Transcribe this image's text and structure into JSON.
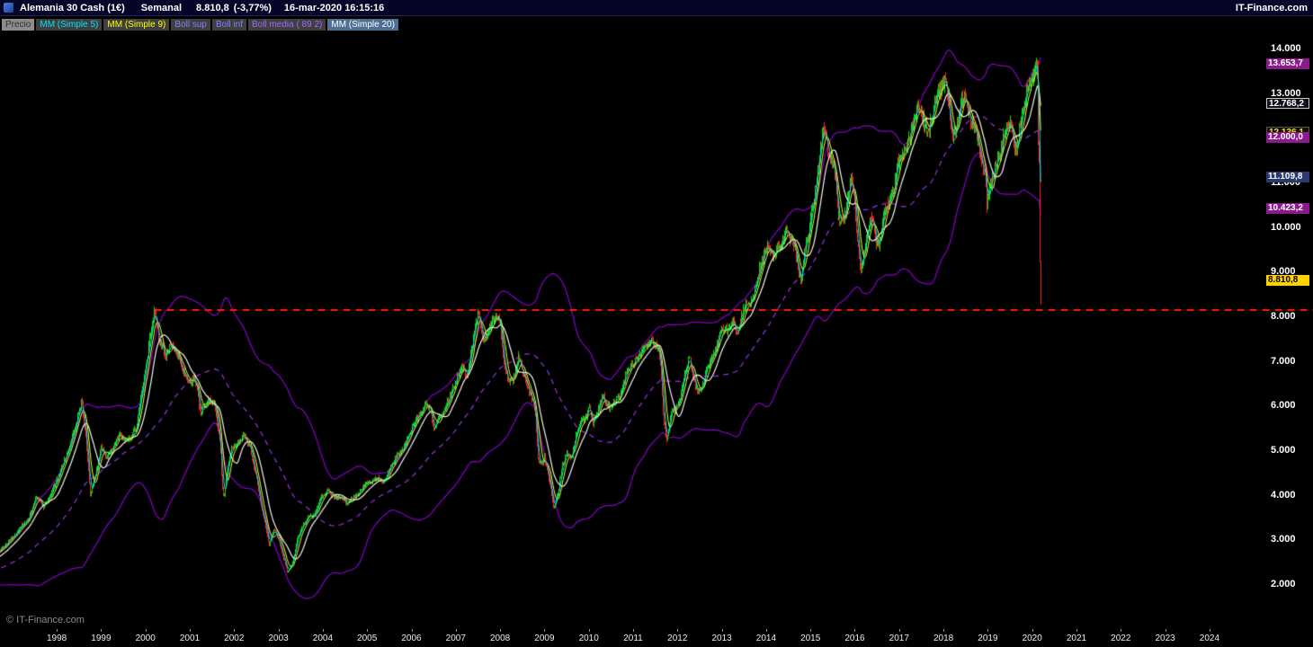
{
  "header": {
    "symbol": "Alemania 30 Cash (1€)",
    "timeframe": "Semanal",
    "last_price": "8.810,8",
    "change": "(-3,77%)",
    "timestamp": "16-mar-2020 16:15:16",
    "brand": "IT-Finance.com"
  },
  "legend": {
    "items": [
      {
        "id": "precio",
        "label": "Precio",
        "color": "#2e2e2e",
        "bg": "#8c8c8c"
      },
      {
        "id": "mm5",
        "label": "MM (Simple 5)",
        "color": "#00e5ff",
        "bg": "#3f3f3f"
      },
      {
        "id": "mm9",
        "label": "MM (Simple 9)",
        "color": "#ffff00",
        "bg": "#3f3f3f"
      },
      {
        "id": "boll-sup",
        "label": "Boll sup",
        "color": "#8080ff",
        "bg": "#3f3f3f"
      },
      {
        "id": "boll-inf",
        "label": "Boll inf",
        "color": "#8080ff",
        "bg": "#3f3f3f"
      },
      {
        "id": "boll-media",
        "label": "Boll media ( 89 2)",
        "color": "#9a6aff",
        "bg": "#3f3f3f"
      },
      {
        "id": "mm20",
        "label": "MM (Simple 20)",
        "color": "#ffffff",
        "bg": "#4e6f94"
      }
    ]
  },
  "watermark": "© IT-Finance.com",
  "price_tags": [
    {
      "text": "13.653,7",
      "value": 13653.7,
      "bg": "#8b1a8b",
      "color": "#ffffff"
    },
    {
      "text": "12.768,2",
      "value": 12768.2,
      "bg": "#10101a",
      "color": "#ffffff",
      "border": "#c8c8c8"
    },
    {
      "text": "12.136,1",
      "value": 12136.1,
      "bg": "#101010",
      "color": "#ffe000",
      "border": "#555555"
    },
    {
      "text": "12.000,0",
      "value": 12000.0,
      "bg": "#8b1a8b",
      "color": "#ffffff"
    },
    {
      "text": "11.109,8",
      "value": 11109.8,
      "bg": "#2b3a6e",
      "color": "#ffffff"
    },
    {
      "text": "10.423,2",
      "value": 10423.2,
      "bg": "#8b1a8b",
      "color": "#ffffff"
    },
    {
      "text": "8.810,8",
      "value": 8810.8,
      "bg": "#ffd400",
      "color": "#000000"
    }
  ],
  "chart_data": {
    "type": "candlestick",
    "title": "Alemania 30 Cash (1€) — Semanal",
    "x_axis": {
      "range": [
        1996.72,
        2025.28
      ],
      "ticks": [
        "1998",
        "1999",
        "2000",
        "2001",
        "2002",
        "2003",
        "2004",
        "2005",
        "2006",
        "2007",
        "2008",
        "2009",
        "2010",
        "2011",
        "2012",
        "2013",
        "2014",
        "2015",
        "2016",
        "2017",
        "2018",
        "2019",
        "2020",
        "2021",
        "2022",
        "2023",
        "2024"
      ]
    },
    "y_axis": {
      "range": [
        993,
        14361
      ],
      "ticks": [
        {
          "v": 14000,
          "label": "14.000"
        },
        {
          "v": 13000,
          "label": "13.000"
        },
        {
          "v": 12000,
          "label": "12.000"
        },
        {
          "v": 11000,
          "label": "11.000"
        },
        {
          "v": 10000,
          "label": "10.000"
        },
        {
          "v": 9000,
          "label": "9.000"
        },
        {
          "v": 8000,
          "label": "8.000"
        },
        {
          "v": 7000,
          "label": "7.000"
        },
        {
          "v": 6000,
          "label": "6.000"
        },
        {
          "v": 5000,
          "label": "5.000"
        },
        {
          "v": 4000,
          "label": "4.000"
        },
        {
          "v": 3000,
          "label": "3.000"
        },
        {
          "v": 2000,
          "label": "2.000"
        }
      ]
    },
    "support_line": {
      "value": 8150,
      "color": "#ff2000",
      "style": "dashed",
      "dash": [
        8,
        6
      ],
      "x_start": 2000.2
    },
    "candles": {
      "up_color": "#00e000",
      "down_color": "#ff2222",
      "interval": "weekly"
    },
    "indicators": [
      {
        "name": "MM (Simple 5)",
        "type": "sma",
        "period": 5,
        "color": "#00e5ff",
        "width": 1
      },
      {
        "name": "MM (Simple 9)",
        "type": "sma",
        "period": 9,
        "color": "#ffff00",
        "width": 1
      },
      {
        "name": "MM (Simple 20)",
        "type": "sma",
        "period": 20,
        "color": "#f2f2f2",
        "width": 1.2
      },
      {
        "name": "Bollinger (89,2)",
        "type": "bollinger",
        "period": 89,
        "mult": 2,
        "band_color": "#8800cc",
        "mid_color": "#9933e6",
        "mid_dash": [
          6,
          5
        ],
        "width": 1.2
      }
    ],
    "final_weeks": {
      "closes": [
        13744,
        13579,
        11890,
        11542,
        9232,
        8810.8
      ],
      "last_low": 8255,
      "peak_high": 13795
    },
    "close_keyframes": [
      [
        1995.0,
        2080
      ],
      [
        1995.3,
        2150
      ],
      [
        1995.6,
        2230
      ],
      [
        1995.9,
        2300
      ],
      [
        1996.2,
        2480
      ],
      [
        1996.5,
        2570
      ],
      [
        1996.85,
        2880
      ],
      [
        1997.1,
        3180
      ],
      [
        1997.35,
        3460
      ],
      [
        1997.55,
        4000
      ],
      [
        1997.7,
        3720
      ],
      [
        1997.85,
        3980
      ],
      [
        1998.0,
        4320
      ],
      [
        1998.15,
        4760
      ],
      [
        1998.3,
        5120
      ],
      [
        1998.45,
        5700
      ],
      [
        1998.55,
        6080
      ],
      [
        1998.65,
        5380
      ],
      [
        1998.75,
        4020
      ],
      [
        1998.85,
        4420
      ],
      [
        1999.0,
        5060
      ],
      [
        1999.1,
        4860
      ],
      [
        1999.25,
        5010
      ],
      [
        1999.4,
        5350
      ],
      [
        1999.55,
        5210
      ],
      [
        1999.7,
        5350
      ],
      [
        1999.8,
        5560
      ],
      [
        1999.95,
        6580
      ],
      [
        2000.05,
        7210
      ],
      [
        2000.2,
        8100
      ],
      [
        2000.3,
        7480
      ],
      [
        2000.45,
        7080
      ],
      [
        2000.55,
        7340
      ],
      [
        2000.7,
        7190
      ],
      [
        2000.85,
        6790
      ],
      [
        2001.0,
        6480
      ],
      [
        2001.1,
        6640
      ],
      [
        2001.25,
        5830
      ],
      [
        2001.4,
        6130
      ],
      [
        2001.55,
        6040
      ],
      [
        2001.68,
        5190
      ],
      [
        2001.72,
        4280
      ],
      [
        2001.76,
        3920
      ],
      [
        2001.85,
        4680
      ],
      [
        2001.95,
        5040
      ],
      [
        2002.05,
        5140
      ],
      [
        2002.2,
        5340
      ],
      [
        2002.35,
        5090
      ],
      [
        2002.5,
        4380
      ],
      [
        2002.6,
        3700
      ],
      [
        2002.7,
        3340
      ],
      [
        2002.78,
        2860
      ],
      [
        2002.88,
        3240
      ],
      [
        2003.0,
        3000
      ],
      [
        2003.1,
        2640
      ],
      [
        2003.2,
        2260
      ],
      [
        2003.3,
        2460
      ],
      [
        2003.4,
        2940
      ],
      [
        2003.5,
        3240
      ],
      [
        2003.6,
        3400
      ],
      [
        2003.7,
        3560
      ],
      [
        2003.8,
        3500
      ],
      [
        2003.95,
        3950
      ],
      [
        2004.1,
        4100
      ],
      [
        2004.25,
        3940
      ],
      [
        2004.4,
        3950
      ],
      [
        2004.55,
        3790
      ],
      [
        2004.65,
        3900
      ],
      [
        2004.8,
        4050
      ],
      [
        2004.95,
        4250
      ],
      [
        2005.1,
        4300
      ],
      [
        2005.25,
        4390
      ],
      [
        2005.35,
        4250
      ],
      [
        2005.5,
        4590
      ],
      [
        2005.65,
        4840
      ],
      [
        2005.8,
        5000
      ],
      [
        2005.95,
        5400
      ],
      [
        2006.1,
        5650
      ],
      [
        2006.3,
        6040
      ],
      [
        2006.42,
        5940
      ],
      [
        2006.5,
        5440
      ],
      [
        2006.6,
        5690
      ],
      [
        2006.75,
        5900
      ],
      [
        2006.9,
        6290
      ],
      [
        2007.0,
        6590
      ],
      [
        2007.15,
        6900
      ],
      [
        2007.25,
        6660
      ],
      [
        2007.35,
        7290
      ],
      [
        2007.45,
        7890
      ],
      [
        2007.52,
        8090
      ],
      [
        2007.6,
        7490
      ],
      [
        2007.7,
        7590
      ],
      [
        2007.8,
        7890
      ],
      [
        2007.95,
        8040
      ],
      [
        2008.0,
        7840
      ],
      [
        2008.08,
        6890
      ],
      [
        2008.2,
        6540
      ],
      [
        2008.3,
        6600
      ],
      [
        2008.4,
        7090
      ],
      [
        2008.5,
        6740
      ],
      [
        2008.6,
        6440
      ],
      [
        2008.7,
        6240
      ],
      [
        2008.78,
        5840
      ],
      [
        2008.85,
        4790
      ],
      [
        2008.95,
        4690
      ],
      [
        2009.0,
        4840
      ],
      [
        2009.1,
        4340
      ],
      [
        2009.2,
        3690
      ],
      [
        2009.3,
        4090
      ],
      [
        2009.4,
        4640
      ],
      [
        2009.5,
        4940
      ],
      [
        2009.6,
        4840
      ],
      [
        2009.7,
        5340
      ],
      [
        2009.8,
        5640
      ],
      [
        2009.9,
        5690
      ],
      [
        2010.0,
        5940
      ],
      [
        2010.1,
        5590
      ],
      [
        2010.2,
        5890
      ],
      [
        2010.3,
        6240
      ],
      [
        2010.4,
        5990
      ],
      [
        2010.5,
        5940
      ],
      [
        2010.6,
        6140
      ],
      [
        2010.7,
        6240
      ],
      [
        2010.8,
        6590
      ],
      [
        2010.9,
        6840
      ],
      [
        2011.0,
        6940
      ],
      [
        2011.1,
        7090
      ],
      [
        2011.2,
        7190
      ],
      [
        2011.3,
        7390
      ],
      [
        2011.4,
        7490
      ],
      [
        2011.5,
        7340
      ],
      [
        2011.6,
        7140
      ],
      [
        2011.64,
        6440
      ],
      [
        2011.68,
        5640
      ],
      [
        2011.75,
        5240
      ],
      [
        2011.8,
        5540
      ],
      [
        2011.87,
        5940
      ],
      [
        2011.95,
        5890
      ],
      [
        2012.05,
        6140
      ],
      [
        2012.15,
        6690
      ],
      [
        2012.25,
        7090
      ],
      [
        2012.35,
        6640
      ],
      [
        2012.45,
        6290
      ],
      [
        2012.55,
        6440
      ],
      [
        2012.65,
        6840
      ],
      [
        2012.75,
        6990
      ],
      [
        2012.85,
        7240
      ],
      [
        2012.95,
        7590
      ],
      [
        2013.05,
        7740
      ],
      [
        2013.15,
        7690
      ],
      [
        2013.25,
        7890
      ],
      [
        2013.35,
        7590
      ],
      [
        2013.45,
        8040
      ],
      [
        2013.55,
        8240
      ],
      [
        2013.65,
        8290
      ],
      [
        2013.75,
        8640
      ],
      [
        2013.85,
        9040
      ],
      [
        2013.95,
        9390
      ],
      [
        2014.05,
        9540
      ],
      [
        2014.15,
        9290
      ],
      [
        2014.25,
        9540
      ],
      [
        2014.35,
        9590
      ],
      [
        2014.45,
        9940
      ],
      [
        2014.55,
        9740
      ],
      [
        2014.65,
        9540
      ],
      [
        2014.72,
        9040
      ],
      [
        2014.78,
        8740
      ],
      [
        2014.85,
        9440
      ],
      [
        2014.95,
        9790
      ],
      [
        2015.05,
        10490
      ],
      [
        2015.15,
        11240
      ],
      [
        2015.25,
        12040
      ],
      [
        2015.3,
        12290
      ],
      [
        2015.4,
        11590
      ],
      [
        2015.5,
        11440
      ],
      [
        2015.55,
        11190
      ],
      [
        2015.62,
        10240
      ],
      [
        2015.7,
        10140
      ],
      [
        2015.78,
        10290
      ],
      [
        2015.85,
        10840
      ],
      [
        2015.92,
        11090
      ],
      [
        2016.0,
        10540
      ],
      [
        2016.07,
        9590
      ],
      [
        2016.13,
        8940
      ],
      [
        2016.2,
        9440
      ],
      [
        2016.3,
        9990
      ],
      [
        2016.38,
        10190
      ],
      [
        2016.45,
        9840
      ],
      [
        2016.49,
        9540
      ],
      [
        2016.55,
        9640
      ],
      [
        2016.65,
        10340
      ],
      [
        2016.75,
        10540
      ],
      [
        2016.85,
        10690
      ],
      [
        2016.95,
        11440
      ],
      [
        2017.05,
        11540
      ],
      [
        2017.15,
        11790
      ],
      [
        2017.25,
        12040
      ],
      [
        2017.35,
        12590
      ],
      [
        2017.45,
        12690
      ],
      [
        2017.55,
        12340
      ],
      [
        2017.65,
        12140
      ],
      [
        2017.75,
        12540
      ],
      [
        2017.85,
        13040
      ],
      [
        2017.95,
        13040
      ],
      [
        2018.03,
        13390
      ],
      [
        2018.1,
        12840
      ],
      [
        2018.16,
        12140
      ],
      [
        2018.25,
        12040
      ],
      [
        2018.35,
        12640
      ],
      [
        2018.45,
        12990
      ],
      [
        2018.55,
        12540
      ],
      [
        2018.62,
        12340
      ],
      [
        2018.7,
        12290
      ],
      [
        2018.78,
        11940
      ],
      [
        2018.85,
        11440
      ],
      [
        2018.93,
        11140
      ],
      [
        2018.98,
        10540
      ],
      [
        2019.05,
        10940
      ],
      [
        2019.15,
        11340
      ],
      [
        2019.25,
        11540
      ],
      [
        2019.35,
        11990
      ],
      [
        2019.42,
        12240
      ],
      [
        2019.5,
        12340
      ],
      [
        2019.58,
        11940
      ],
      [
        2019.62,
        11640
      ],
      [
        2019.7,
        12140
      ],
      [
        2019.8,
        12640
      ],
      [
        2019.88,
        13140
      ],
      [
        2019.95,
        13240
      ],
      [
        2020.03,
        13390
      ],
      [
        2020.1,
        13700
      ],
      [
        2020.13,
        13744
      ],
      [
        2020.15,
        13579
      ],
      [
        2020.17,
        11890
      ],
      [
        2020.19,
        11542
      ],
      [
        2020.2,
        9232
      ],
      [
        2020.21,
        8810.8
      ]
    ]
  }
}
